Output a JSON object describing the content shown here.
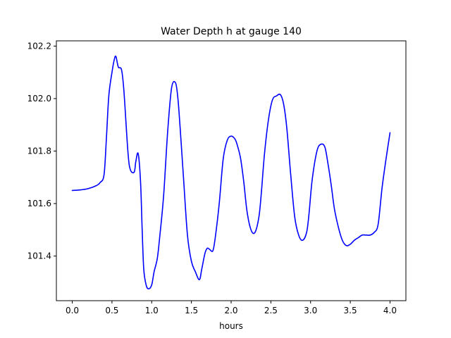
{
  "chart_data": {
    "type": "line",
    "title": "Water Depth h at gauge 140",
    "xlabel": "hours",
    "ylabel": "",
    "xlim": [
      -0.2,
      4.2
    ],
    "ylim": [
      101.23,
      102.22
    ],
    "xticks": [
      0.0,
      0.5,
      1.0,
      1.5,
      2.0,
      2.5,
      3.0,
      3.5,
      4.0
    ],
    "xtick_labels": [
      "0.0",
      "0.5",
      "1.0",
      "1.5",
      "2.0",
      "2.5",
      "3.0",
      "3.5",
      "4.0"
    ],
    "yticks": [
      101.4,
      101.6,
      101.8,
      102.0,
      102.2
    ],
    "ytick_labels": [
      "101.4",
      "101.6",
      "101.8",
      "102.0",
      "102.2"
    ],
    "grid": false,
    "series": [
      {
        "color": "#0000ff",
        "x": [
          0.0,
          0.1,
          0.2,
          0.3,
          0.35,
          0.4,
          0.43,
          0.46,
          0.5,
          0.53,
          0.55,
          0.58,
          0.62,
          0.65,
          0.7,
          0.73,
          0.78,
          0.8,
          0.83,
          0.86,
          0.88,
          0.9,
          0.93,
          0.96,
          1.0,
          1.03,
          1.07,
          1.1,
          1.15,
          1.2,
          1.25,
          1.3,
          1.33,
          1.36,
          1.4,
          1.45,
          1.5,
          1.55,
          1.6,
          1.63,
          1.67,
          1.7,
          1.73,
          1.77,
          1.8,
          1.85,
          1.9,
          1.95,
          2.0,
          2.05,
          2.08,
          2.12,
          2.16,
          2.2,
          2.25,
          2.3,
          2.35,
          2.38,
          2.42,
          2.47,
          2.52,
          2.57,
          2.62,
          2.66,
          2.7,
          2.75,
          2.8,
          2.85,
          2.9,
          2.95,
          2.98,
          3.02,
          3.08,
          3.13,
          3.18,
          3.22,
          3.26,
          3.3,
          3.35,
          3.4,
          3.45,
          3.5,
          3.55,
          3.6,
          3.65,
          3.7,
          3.75,
          3.8,
          3.85,
          3.9,
          3.95,
          4.0
        ],
        "values": [
          101.65,
          101.652,
          101.657,
          101.668,
          101.68,
          101.71,
          101.85,
          102.01,
          102.1,
          102.15,
          102.16,
          102.12,
          102.11,
          102.03,
          101.8,
          101.73,
          101.72,
          101.76,
          101.79,
          101.68,
          101.5,
          101.35,
          101.29,
          101.275,
          101.29,
          101.34,
          101.39,
          101.47,
          101.63,
          101.87,
          102.04,
          102.06,
          102.0,
          101.88,
          101.7,
          101.48,
          101.38,
          101.34,
          101.31,
          101.35,
          101.41,
          101.43,
          101.425,
          101.42,
          101.47,
          101.6,
          101.77,
          101.84,
          101.857,
          101.845,
          101.82,
          101.77,
          101.68,
          101.57,
          101.5,
          101.49,
          101.55,
          101.64,
          101.79,
          101.92,
          101.995,
          102.01,
          102.015,
          101.98,
          101.89,
          101.71,
          101.55,
          101.48,
          101.46,
          101.49,
          101.56,
          101.69,
          101.8,
          101.826,
          101.815,
          101.75,
          101.67,
          101.58,
          101.51,
          101.46,
          101.44,
          101.445,
          101.46,
          101.47,
          101.48,
          101.48,
          101.48,
          101.49,
          101.52,
          101.66,
          101.77,
          101.87
        ]
      }
    ]
  }
}
